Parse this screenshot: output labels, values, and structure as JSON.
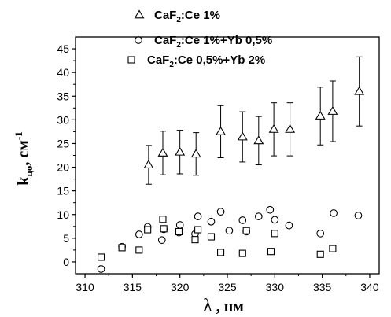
{
  "chart_data": {
    "type": "scatter",
    "xlabel": {
      "main": "λ",
      "rest": " , нм"
    },
    "ylabel": {
      "main": "k",
      "sub": "цо",
      "rest": ", см",
      "sup": "-1"
    },
    "xlim": [
      309,
      341
    ],
    "ylim": [
      -2.5,
      47.5
    ],
    "xticks": [
      310,
      315,
      320,
      325,
      330,
      335,
      340
    ],
    "yticks": [
      0,
      5,
      10,
      15,
      20,
      25,
      30,
      35,
      40,
      45
    ],
    "grid": false,
    "legend_position": "top",
    "series": [
      {
        "name": {
          "pre": "CaF",
          "sub": "2",
          "post": ":Ce 1%"
        },
        "marker": "triangle",
        "x": [
          316.7,
          318.2,
          320.0,
          321.7,
          324.3,
          326.6,
          328.3,
          329.9,
          331.6,
          334.8,
          336.1,
          338.9
        ],
        "y": [
          20.5,
          23.0,
          23.2,
          22.8,
          27.5,
          26.4,
          25.6,
          28.0,
          28.0,
          30.8,
          31.8,
          36.0
        ],
        "err": [
          4.1,
          4.6,
          4.6,
          4.5,
          5.5,
          5.3,
          5.1,
          5.6,
          5.6,
          6.1,
          6.4,
          7.3
        ]
      },
      {
        "name": {
          "pre": "CaF",
          "sub": "2",
          "post": ":Ce 1%+Yb 0,5%"
        },
        "marker": "circle",
        "x": [
          311.7,
          313.9,
          315.7,
          316.6,
          318.1,
          318.3,
          319.9,
          320.0,
          321.6,
          321.9,
          323.3,
          324.3,
          325.2,
          326.6,
          327.0,
          328.3,
          329.5,
          330.0,
          331.5,
          334.8,
          336.2,
          338.8
        ],
        "y": [
          -1.5,
          3.2,
          5.8,
          7.4,
          4.6,
          6.9,
          6.2,
          7.8,
          5.9,
          9.6,
          8.5,
          10.6,
          6.6,
          8.8,
          6.4,
          9.6,
          11.0,
          8.9,
          7.7,
          6.0,
          10.3,
          9.8
        ]
      },
      {
        "name": {
          "pre": "CaF",
          "sub": "2",
          "post": ":Ce 0,5%+Yb 2%"
        },
        "marker": "square",
        "x": [
          311.7,
          313.9,
          315.7,
          316.6,
          318.2,
          318.3,
          319.9,
          321.6,
          321.9,
          323.3,
          324.3,
          326.6,
          327.0,
          329.6,
          330.0,
          334.8,
          336.1
        ],
        "y": [
          1.0,
          3.0,
          2.5,
          6.8,
          9.0,
          7.0,
          6.4,
          4.7,
          6.8,
          5.3,
          2.0,
          1.8,
          6.6,
          2.2,
          6.0,
          1.6,
          2.8
        ]
      }
    ]
  }
}
